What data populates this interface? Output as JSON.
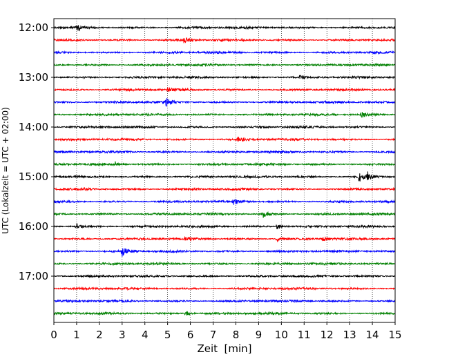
{
  "chart_data": {
    "type": "line",
    "title": "",
    "xlabel": "Zeit  [min]",
    "ylabel": "UTC (Lokalzeit = UTC + 02:00)",
    "xlim": [
      0,
      15
    ],
    "x_ticks": [
      0,
      1,
      2,
      3,
      4,
      5,
      6,
      7,
      8,
      9,
      10,
      11,
      12,
      13,
      14,
      15
    ],
    "x_tick_labels": [
      "0",
      "1",
      "2",
      "3",
      "4",
      "5",
      "6",
      "7",
      "8",
      "9",
      "10",
      "11",
      "12",
      "13",
      "14",
      "15"
    ],
    "y_tick_labels": [
      "12:00",
      "13:00",
      "14:00",
      "15:00",
      "16:00",
      "17:00"
    ],
    "trace_interval_min": 15,
    "grid": "vertical dotted",
    "trace_colors": [
      "#000000",
      "#ff0000",
      "#0000ff",
      "#008000"
    ],
    "traces": [
      {
        "start": "12:00",
        "color": "#000000",
        "events": [
          {
            "t": 1.0,
            "amp": 6
          }
        ]
      },
      {
        "start": "12:15",
        "color": "#ff0000",
        "events": [
          {
            "t": 5.7,
            "amp": 4
          }
        ]
      },
      {
        "start": "12:30",
        "color": "#0000ff",
        "events": []
      },
      {
        "start": "12:45",
        "color": "#008000",
        "events": []
      },
      {
        "start": "13:00",
        "color": "#000000",
        "events": [
          {
            "t": 10.8,
            "amp": 4
          }
        ]
      },
      {
        "start": "13:15",
        "color": "#ff0000",
        "events": [
          {
            "t": 5.0,
            "amp": 4
          }
        ]
      },
      {
        "start": "13:30",
        "color": "#0000ff",
        "events": [
          {
            "t": 4.9,
            "amp": 7
          }
        ]
      },
      {
        "start": "13:45",
        "color": "#008000",
        "events": [
          {
            "t": 13.5,
            "amp": 5
          }
        ]
      },
      {
        "start": "14:00",
        "color": "#000000",
        "events": []
      },
      {
        "start": "14:15",
        "color": "#ff0000",
        "events": [
          {
            "t": 8.1,
            "amp": 5
          }
        ]
      },
      {
        "start": "14:30",
        "color": "#0000ff",
        "events": []
      },
      {
        "start": "14:45",
        "color": "#008000",
        "events": [
          {
            "t": 2.7,
            "amp": 4
          }
        ]
      },
      {
        "start": "15:00",
        "color": "#000000",
        "events": [
          {
            "t": 13.4,
            "amp": 8
          },
          {
            "t": 13.8,
            "amp": 6
          }
        ]
      },
      {
        "start": "15:15",
        "color": "#ff0000",
        "events": [
          {
            "t": 1.3,
            "amp": 3
          }
        ]
      },
      {
        "start": "15:30",
        "color": "#0000ff",
        "events": [
          {
            "t": 7.9,
            "amp": 5
          }
        ]
      },
      {
        "start": "15:45",
        "color": "#008000",
        "events": [
          {
            "t": 9.2,
            "amp": 5
          }
        ]
      },
      {
        "start": "16:00",
        "color": "#000000",
        "events": [
          {
            "t": 1.0,
            "amp": 4
          },
          {
            "t": 9.8,
            "amp": 5
          }
        ]
      },
      {
        "start": "16:15",
        "color": "#ff0000",
        "events": [
          {
            "t": 5.8,
            "amp": 4
          },
          {
            "t": 9.8,
            "amp": 4
          },
          {
            "t": 11.8,
            "amp": 4
          }
        ]
      },
      {
        "start": "16:30",
        "color": "#0000ff",
        "events": [
          {
            "t": 3.0,
            "amp": 7
          }
        ]
      },
      {
        "start": "16:45",
        "color": "#008000",
        "events": []
      },
      {
        "start": "17:00",
        "color": "#000000",
        "events": []
      },
      {
        "start": "17:15",
        "color": "#ff0000",
        "events": []
      },
      {
        "start": "17:30",
        "color": "#0000ff",
        "events": []
      },
      {
        "start": "17:45",
        "color": "#008000",
        "events": [
          {
            "t": 5.8,
            "amp": 4
          }
        ]
      }
    ]
  }
}
